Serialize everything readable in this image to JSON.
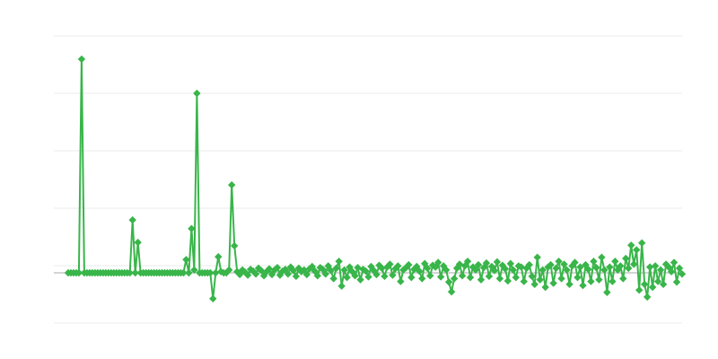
{
  "chart_data": {
    "type": "line",
    "title": "",
    "xlabel": "",
    "ylabel": "",
    "grid": true,
    "legend": "none",
    "marker": "diamond",
    "colors": {
      "series": "#39b54a",
      "grid": "#ebebeb",
      "zero_line": "#aaaaaa"
    },
    "ylim": [
      -0.875,
      4.125
    ],
    "grid_values": [
      -0.875,
      0.125,
      1.125,
      2.125,
      3.125,
      4.125
    ],
    "series": [
      {
        "values": [
          0,
          0,
          0,
          0,
          0,
          3.72,
          0,
          0,
          0,
          0,
          0,
          0,
          0,
          0,
          0,
          0,
          0,
          0,
          0,
          0,
          0,
          0,
          0,
          0,
          0.92,
          0,
          0.53,
          0,
          0,
          0,
          0,
          0,
          0,
          0,
          0,
          0,
          0,
          0,
          0,
          0,
          0,
          0,
          0,
          0,
          0.23,
          0,
          0.77,
          0.05,
          3.125,
          0,
          0,
          0,
          0,
          0,
          -0.45,
          0,
          0.28,
          0.02,
          0,
          0,
          0.05,
          1.53,
          0.47,
          0.02,
          -0.03,
          0.05,
          0.01,
          -0.04,
          0.06,
          0.03,
          -0.02,
          0.08,
          0.04,
          -0.05,
          0.02,
          0.07,
          -0.03,
          0.05,
          0.09,
          -0.04,
          0.03,
          0.06,
          -0.02,
          0.1,
          0.04,
          -0.06,
          0.08,
          0.02,
          0.05,
          -0.03,
          0.07,
          0.11,
          0.03,
          -0.05,
          0.09,
          0.06,
          -0.02,
          0.12,
          0.04,
          -0.1,
          0.08,
          0.2,
          -0.23,
          0.05,
          -0.08,
          0.1,
          0.02,
          -0.05,
          0.09,
          -0.12,
          0.06,
          0.03,
          -0.07,
          0.11,
          0.04,
          -0.03,
          0.13,
          0.08,
          -0.06,
          0.1,
          0.15,
          -0.04,
          0.07,
          0.12,
          -0.15,
          0.05,
          0.09,
          0.14,
          -0.08,
          0.06,
          0.11,
          0.03,
          -0.1,
          0.16,
          0.08,
          -0.05,
          0.13,
          0.1,
          0.18,
          -0.07,
          0.12,
          0.05,
          -0.16,
          -0.33,
          -0.1,
          0.08,
          0.15,
          -0.05,
          0.12,
          0.2,
          -0.08,
          0.1,
          0.05,
          0.14,
          -0.12,
          0.09,
          0.17,
          -0.06,
          0.11,
          0.04,
          0.19,
          -0.1,
          0.13,
          0.07,
          -0.14,
          0.16,
          0.05,
          -0.08,
          0.12,
          0.1,
          -0.15,
          0.08,
          0.14,
          -0.06,
          -0.2,
          0.27,
          -0.12,
          0.05,
          -0.25,
          0.1,
          0.14,
          -0.18,
          0.08,
          0.2,
          -0.1,
          0.15,
          0.05,
          -0.2,
          0.12,
          0.18,
          -0.08,
          0.1,
          -0.22,
          0.14,
          0.06,
          -0.15,
          0.2,
          0.09,
          -0.12,
          0.27,
          0.05,
          -0.34,
          0.1,
          -0.15,
          0.2,
          0.05,
          0.12,
          -0.1,
          0.25,
          0.08,
          0.48,
          0.15,
          0.4,
          -0.3,
          0.52,
          -0.2,
          -0.42,
          0.1,
          -0.25,
          0.12,
          -0.15,
          0.05,
          -0.2,
          0.15,
          0.1,
          0.02,
          0.18,
          -0.16,
          0.08,
          -0.02
        ]
      }
    ]
  }
}
